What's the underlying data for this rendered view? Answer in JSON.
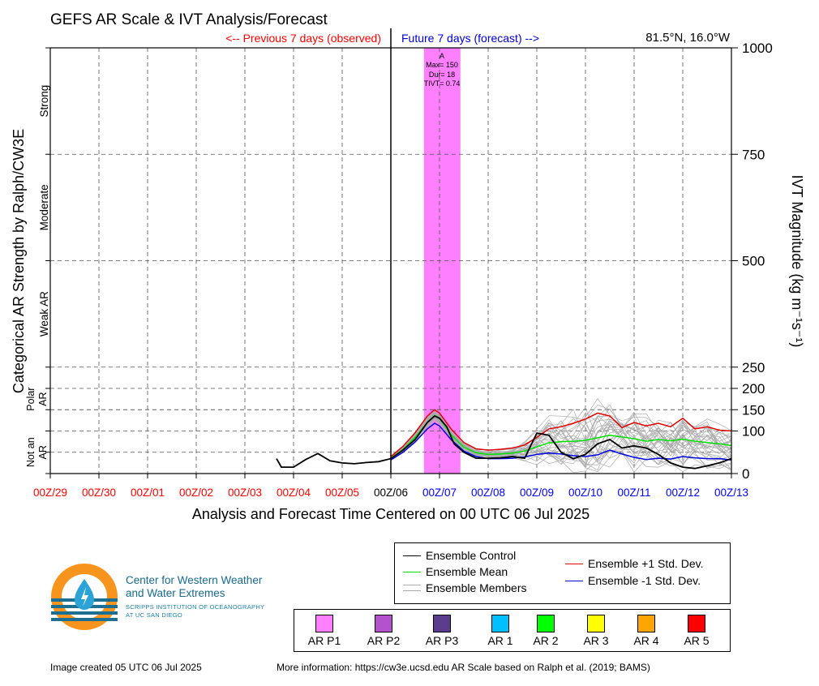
{
  "title": "GEFS AR Scale & IVT Analysis/Forecast",
  "header": {
    "previous": "<-- Previous 7 days (observed)",
    "future": "Future 7 days (forecast) -->",
    "location": "81.5°N, 16.0°W"
  },
  "chart_data": {
    "type": "line",
    "x_axis": {
      "label": "Analysis and Forecast Time Centered on 00 UTC 06 Jul 2025",
      "ticks": [
        "00Z/29",
        "00Z/30",
        "00Z/01",
        "00Z/02",
        "00Z/03",
        "00Z/04",
        "00Z/05",
        "00Z/06",
        "00Z/07",
        "00Z/08",
        "00Z/09",
        "00Z/10",
        "00Z/11",
        "00Z/12",
        "00Z/13"
      ],
      "tick_colors": [
        "#ff0000",
        "#ff0000",
        "#ff0000",
        "#ff0000",
        "#ff0000",
        "#ff0000",
        "#ff0000",
        "#000000",
        "#0000ff",
        "#0000ff",
        "#0000ff",
        "#0000ff",
        "#0000ff",
        "#0000ff",
        "#0000ff"
      ],
      "range_days": [
        -7,
        7
      ]
    },
    "y_axis_right": {
      "label": "IVT Magnitude (kg m⁻¹s⁻¹)",
      "ticks": [
        0,
        100,
        150,
        200,
        250,
        500,
        750,
        1000
      ],
      "range": [
        0,
        1000
      ]
    },
    "y_axis_left": {
      "label": "Categorical AR Strength by Ralph/CW3E",
      "categories": [
        {
          "label": "Strong",
          "lo": 750,
          "hi": 1000
        },
        {
          "label": "Moderate",
          "lo": 500,
          "hi": 750
        },
        {
          "label": "Weak AR",
          "lo": 250,
          "hi": 500
        },
        {
          "label": "Polar AR",
          "lo": 100,
          "hi": 250
        },
        {
          "label": "Not an AR",
          "lo": 0,
          "hi": 100
        }
      ],
      "minor_lines": [
        50,
        150
      ]
    },
    "ar_event": {
      "label": "A",
      "max_text": "Max= 150",
      "dur_text": "Dur= 18",
      "tivt_text": "TIVT= 0.74",
      "start_day": 0.68,
      "end_day": 1.43,
      "color": "#ff80ff"
    },
    "series": [
      {
        "name": "Ensemble Control",
        "color": "#000000",
        "x": [
          -2.35,
          -2.25,
          -2.0,
          -1.75,
          -1.5,
          -1.25,
          -1.0,
          -0.75,
          -0.5,
          -0.25,
          0.0,
          0.25,
          0.5,
          0.75,
          0.9,
          1.0,
          1.15,
          1.3,
          1.5,
          1.75,
          2.0,
          2.25,
          2.5,
          2.75,
          3.0,
          3.25,
          3.5,
          3.75,
          4.0,
          4.25,
          4.5,
          4.75,
          5.0,
          5.25,
          5.5,
          5.75,
          6.0,
          6.25,
          6.5,
          6.75,
          7.0
        ],
        "y": [
          35,
          15,
          15,
          33,
          47,
          30,
          25,
          23,
          26,
          28,
          35,
          55,
          80,
          120,
          135,
          130,
          110,
          70,
          50,
          36,
          36,
          37,
          40,
          36,
          95,
          90,
          50,
          35,
          45,
          70,
          80,
          60,
          65,
          60,
          45,
          25,
          15,
          12,
          18,
          25,
          35
        ]
      },
      {
        "name": "Ensemble Mean",
        "color": "#00e000",
        "x": [
          0.0,
          0.25,
          0.5,
          0.75,
          0.9,
          1.0,
          1.25,
          1.5,
          1.75,
          2.0,
          2.25,
          2.5,
          2.75,
          3.0,
          3.25,
          3.5,
          3.75,
          4.0,
          4.25,
          4.5,
          4.75,
          5.0,
          5.25,
          5.5,
          5.75,
          6.0,
          6.25,
          6.5,
          6.75,
          7.0
        ],
        "y": [
          36,
          57,
          85,
          120,
          137,
          130,
          90,
          62,
          49,
          45,
          46,
          48,
          53,
          63,
          72,
          75,
          76,
          78,
          84,
          90,
          86,
          82,
          76,
          80,
          77,
          81,
          76,
          73,
          70,
          66
        ]
      },
      {
        "name": "Ensemble +1 Std. Dev.",
        "color": "#e00000",
        "x": [
          0.0,
          0.25,
          0.5,
          0.75,
          0.9,
          1.0,
          1.25,
          1.5,
          1.75,
          2.0,
          2.25,
          2.5,
          2.75,
          3.0,
          3.25,
          3.5,
          3.75,
          4.0,
          4.25,
          4.5,
          4.75,
          5.0,
          5.25,
          5.5,
          5.75,
          6.0,
          6.25,
          6.5,
          6.75,
          7.0
        ],
        "y": [
          40,
          64,
          96,
          135,
          150,
          142,
          103,
          73,
          58,
          55,
          57,
          60,
          67,
          85,
          105,
          110,
          118,
          128,
          142,
          135,
          108,
          120,
          112,
          118,
          110,
          130,
          105,
          110,
          102,
          100
        ]
      },
      {
        "name": "Ensemble -1 Std. Dev.",
        "color": "#0000e0",
        "x": [
          0.0,
          0.25,
          0.5,
          0.75,
          0.9,
          1.0,
          1.25,
          1.5,
          1.75,
          2.0,
          2.25,
          2.5,
          2.75,
          3.0,
          3.25,
          3.5,
          3.75,
          4.0,
          4.25,
          4.5,
          4.75,
          5.0,
          5.25,
          5.5,
          5.75,
          6.0,
          6.25,
          6.5,
          6.75,
          7.0
        ],
        "y": [
          32,
          50,
          74,
          105,
          118,
          112,
          78,
          53,
          40,
          35,
          35,
          36,
          39,
          45,
          48,
          46,
          42,
          40,
          44,
          55,
          46,
          38,
          33,
          36,
          34,
          40,
          37,
          35,
          35,
          32
        ]
      }
    ],
    "members_label": "Ensemble Members",
    "members_color": "#aaaaaa"
  },
  "series_legend": {
    "control": "Ensemble Control",
    "mean": "Ensemble Mean",
    "members": "Ensemble Members",
    "plus": "Ensemble +1 Std. Dev.",
    "minus": "Ensemble -1 Std. Dev."
  },
  "category_legend": [
    {
      "label": "AR P1",
      "color": "#ff80ff"
    },
    {
      "label": "AR P2",
      "color": "#b452cd"
    },
    {
      "label": "AR P3",
      "color": "#5b3b8c"
    },
    {
      "label": "AR 1",
      "color": "#00bfff"
    },
    {
      "label": "AR 2",
      "color": "#00ff00"
    },
    {
      "label": "AR 3",
      "color": "#ffff00"
    },
    {
      "label": "AR 4",
      "color": "#ffa500"
    },
    {
      "label": "AR 5",
      "color": "#ff0000"
    }
  ],
  "logo": {
    "line1": "Center for Western Weather",
    "line2": "and Water Extremes",
    "line3": "SCRIPPS INSTITUTION OF OCEANOGRAPHY",
    "line4": "AT UC SAN DIEGO"
  },
  "footer": {
    "created": "Image created 05 UTC 06 Jul 2025",
    "info": "More information: https://cw3e.ucsd.edu AR Scale based on Ralph et al. (2019; BAMS)"
  }
}
